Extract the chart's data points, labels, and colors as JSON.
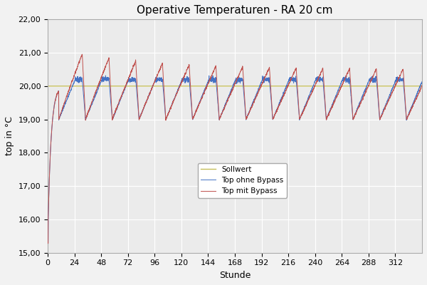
{
  "title": "Operative Temperaturen - RA 20 cm",
  "xlabel": "Stunde",
  "ylabel": "top in °C",
  "xlim": [
    0,
    336
  ],
  "ylim": [
    15.0,
    22.0
  ],
  "yticks": [
    15.0,
    16.0,
    17.0,
    18.0,
    19.0,
    20.0,
    21.0,
    22.0
  ],
  "xticks": [
    0,
    24,
    48,
    72,
    96,
    120,
    144,
    168,
    192,
    216,
    240,
    264,
    288,
    312
  ],
  "sollwert": 20.0,
  "color_ohne": "#4472C4",
  "color_mit": "#C0504D",
  "color_soll": "#C6BE5A",
  "legend_labels": [
    "Top ohne Bypass",
    "Top mit Bypass",
    "Sollwert"
  ],
  "background_color": "#EBEBEB",
  "grid_color": "#FFFFFF",
  "fig_color": "#F2F2F2"
}
